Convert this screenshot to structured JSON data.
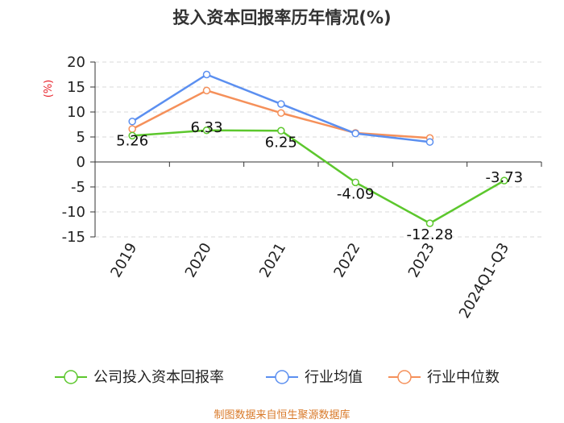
{
  "chart_data": {
    "type": "line",
    "title": "投入资本回报率历年情况(%)",
    "ylabel": "(%)",
    "categories": [
      "2019",
      "2020",
      "2021",
      "2022",
      "2023",
      "2024Q1-Q3"
    ],
    "ylim": [
      -15,
      20
    ],
    "yticks": [
      20,
      15,
      10,
      5,
      0,
      -5,
      -10,
      -15
    ],
    "grid": true,
    "legend_position": "bottom",
    "series": [
      {
        "name": "公司投入资本回报率",
        "color": "#5cc72d",
        "values": [
          5.26,
          6.33,
          6.25,
          -4.09,
          -12.28,
          -3.73
        ],
        "labels": [
          "5.26",
          "6.33",
          "6.25",
          "-4.09",
          "-12.28",
          "-3.73"
        ]
      },
      {
        "name": "行业均值",
        "color": "#5b8ff0",
        "values": [
          8.1,
          17.5,
          11.6,
          5.7,
          4.0,
          null
        ]
      },
      {
        "name": "行业中位数",
        "color": "#f5905a",
        "values": [
          6.6,
          14.3,
          9.8,
          5.8,
          4.8,
          null
        ]
      }
    ]
  },
  "source": "制图数据来自恒生聚源数据库"
}
